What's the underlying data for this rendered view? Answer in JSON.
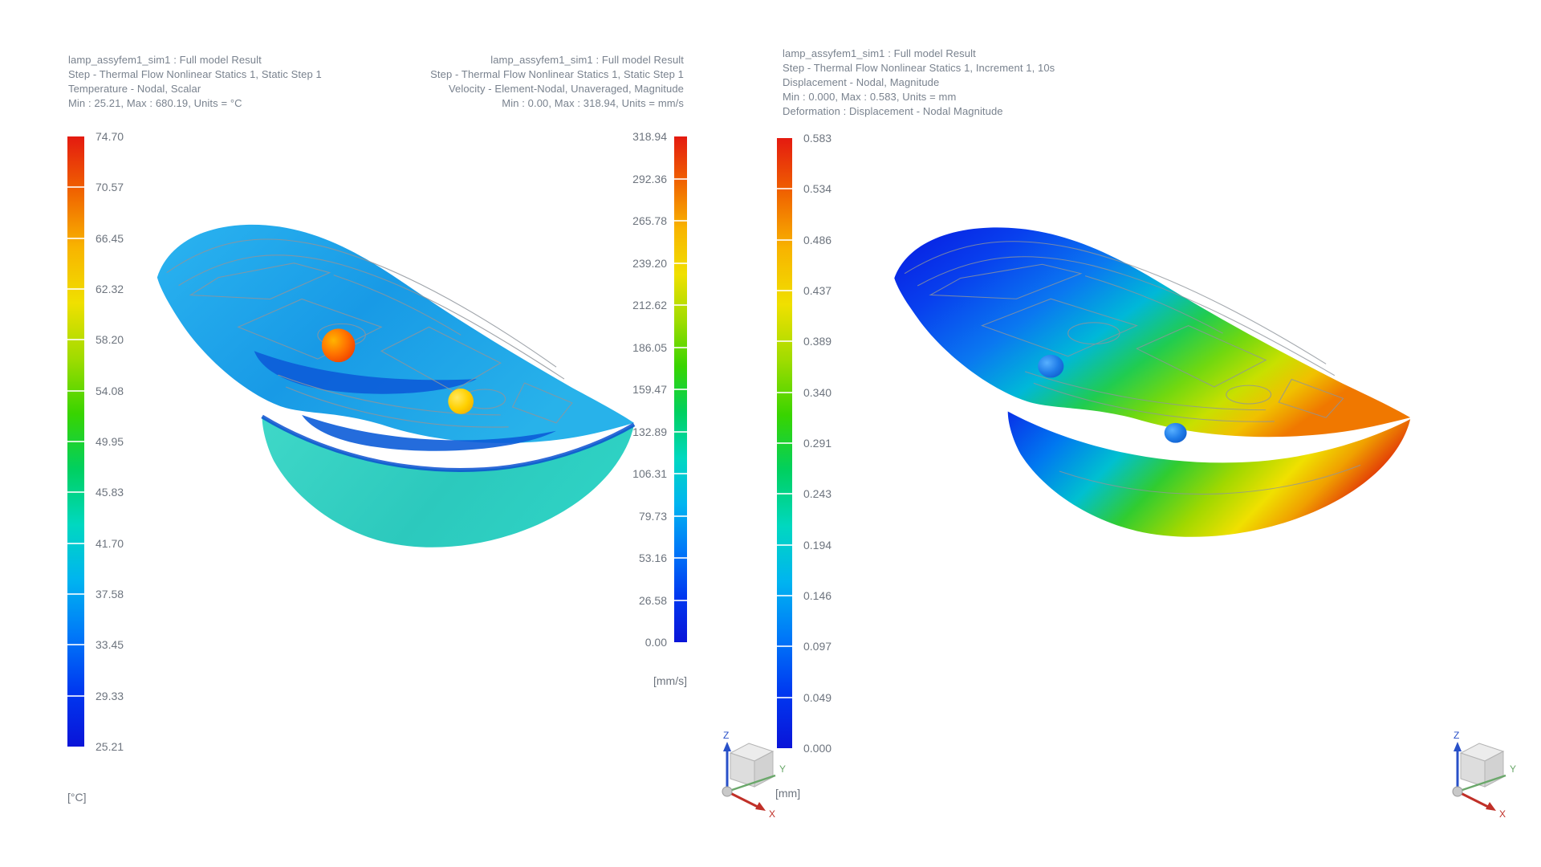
{
  "app": {
    "background": "#ffffff",
    "description": "CAE post-processing window with three result displays of a lamp assembly simulation"
  },
  "views": [
    {
      "id": "temperature",
      "header_lines": [
        "lamp_assyfem1_sim1 : Full model Result",
        "Step - Thermal Flow Nonlinear Statics 1, Static Step 1",
        "Temperature - Nodal, Scalar",
        "Min : 25.21, Max : 680.19, Units = °C"
      ],
      "colorbar": {
        "labels": [
          "74.70",
          "70.57",
          "66.45",
          "62.32",
          "58.20",
          "54.08",
          "49.95",
          "45.83",
          "41.70",
          "37.58",
          "33.45",
          "29.33",
          "25.21"
        ],
        "unit": "[°C]",
        "label_side": "right",
        "min": 25.21,
        "max": 74.7
      }
    },
    {
      "id": "velocity",
      "header_lines": [
        "lamp_assyfem1_sim1 : Full model Result",
        "Step - Thermal Flow Nonlinear Statics 1, Static Step 1",
        "Velocity - Element-Nodal, Unaveraged, Magnitude",
        "Min : 0.00, Max : 318.94, Units = mm/s"
      ],
      "colorbar": {
        "labels": [
          "318.94",
          "292.36",
          "265.78",
          "239.20",
          "212.62",
          "186.05",
          "159.47",
          "132.89",
          "106.31",
          "79.73",
          "53.16",
          "26.58",
          "0.00"
        ],
        "unit": "[mm/s]",
        "label_side": "left",
        "min": 0.0,
        "max": 318.94
      }
    },
    {
      "id": "displacement",
      "header_lines": [
        "lamp_assyfem1_sim1 : Full model Result",
        "Step - Thermal Flow Nonlinear Statics 1, Increment 1, 10s",
        "Displacement - Nodal, Magnitude",
        "Min : 0.000, Max : 0.583, Units = mm",
        "Deformation : Displacement - Nodal Magnitude"
      ],
      "colorbar": {
        "labels": [
          "0.583",
          "0.534",
          "0.486",
          "0.437",
          "0.389",
          "0.340",
          "0.291",
          "0.243",
          "0.194",
          "0.146",
          "0.097",
          "0.049",
          "0.000"
        ],
        "unit": "[mm]",
        "label_side": "right",
        "min": 0.0,
        "max": 0.583
      }
    }
  ],
  "triad": {
    "x": "X",
    "y": "Y",
    "z": "Z"
  },
  "colors": {
    "spectrum_top_to_bottom": [
      "#e41a10",
      "#f06400",
      "#f8b400",
      "#f0e000",
      "#a0dc00",
      "#38d400",
      "#00d060",
      "#00d8c0",
      "#00b4f0",
      "#0078f8",
      "#0038f0",
      "#0a14d8"
    ],
    "header_text": "#79828e",
    "tick_text": "#6d747e",
    "housing_blue": "#189ae6",
    "lens_teal": "#2cc9bd",
    "bulb_hot": "#f04a10",
    "bulb_warm": "#ffd000",
    "bulb_cool": "#1f7ce8",
    "mesh_gray": "#8f959c"
  }
}
